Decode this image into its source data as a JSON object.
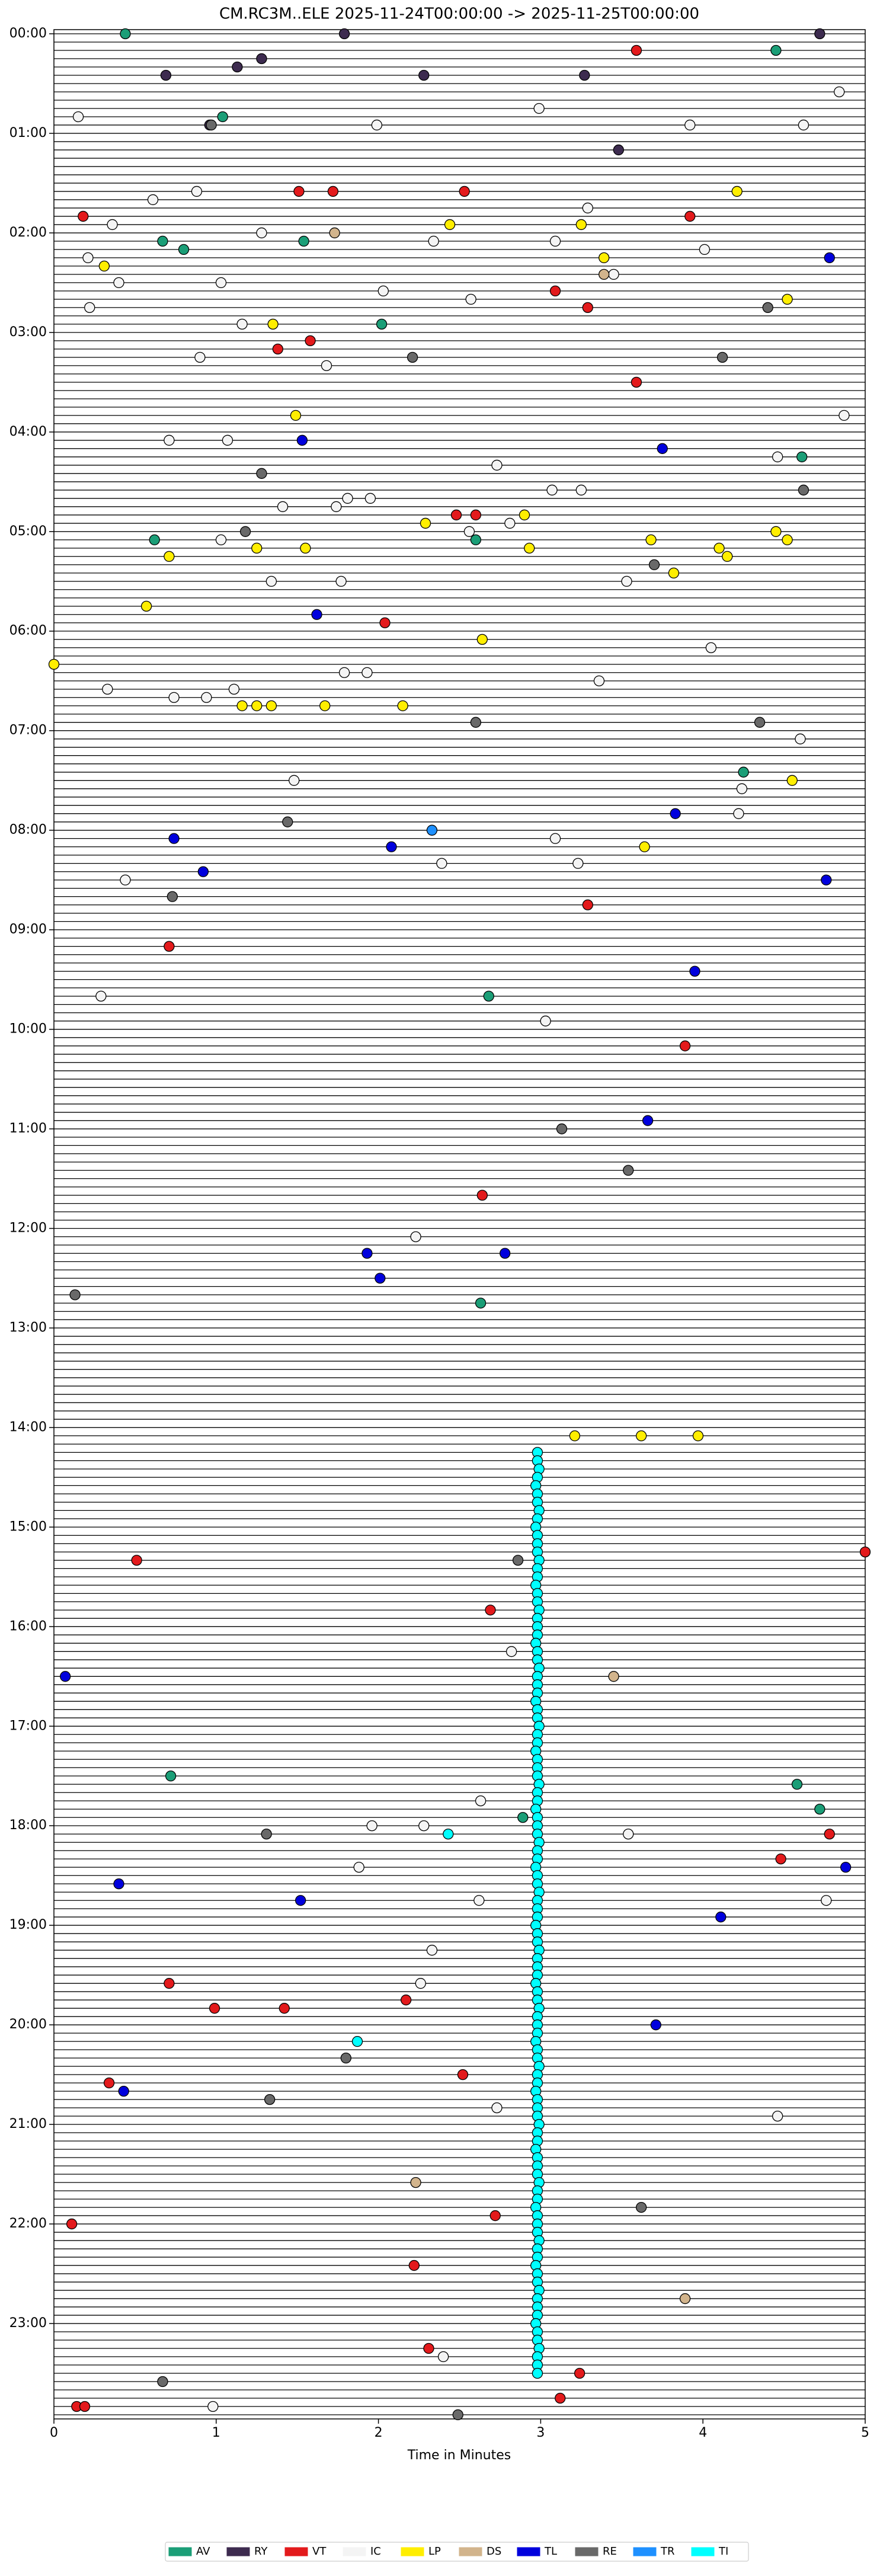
{
  "chart_data": {
    "type": "helicorder",
    "title": "CM.RC3M..ELE  2025-11-24T00:00:00 -> 2025-11-25T00:00:00",
    "x_label": "Time in Minutes",
    "xlim": [
      0,
      5
    ],
    "xticks": [
      0,
      1,
      2,
      3,
      4,
      5
    ],
    "ylim": [
      1440,
      0
    ],
    "yticks": [
      {
        "value": 0,
        "label": "00:00"
      },
      {
        "value": 60,
        "label": "01:00"
      },
      {
        "value": 120,
        "label": "02:00"
      },
      {
        "value": 180,
        "label": "03:00"
      },
      {
        "value": 240,
        "label": "04:00"
      },
      {
        "value": 300,
        "label": "05:00"
      },
      {
        "value": 360,
        "label": "06:00"
      },
      {
        "value": 420,
        "label": "07:00"
      },
      {
        "value": 480,
        "label": "08:00"
      },
      {
        "value": 540,
        "label": "09:00"
      },
      {
        "value": 600,
        "label": "10:00"
      },
      {
        "value": 660,
        "label": "11:00"
      },
      {
        "value": 720,
        "label": "12:00"
      },
      {
        "value": 780,
        "label": "13:00"
      },
      {
        "value": 840,
        "label": "14:00"
      },
      {
        "value": 900,
        "label": "15:00"
      },
      {
        "value": 960,
        "label": "16:00"
      },
      {
        "value": 1020,
        "label": "17:00"
      },
      {
        "value": 1080,
        "label": "18:00"
      },
      {
        "value": 1140,
        "label": "19:00"
      },
      {
        "value": 1200,
        "label": "20:00"
      },
      {
        "value": 1260,
        "label": "21:00"
      },
      {
        "value": 1320,
        "label": "22:00"
      },
      {
        "value": 1380,
        "label": "23:00"
      }
    ],
    "series": [
      {
        "name": "AV",
        "color": "#1b9e77",
        "x": [
          0.44,
          4.45,
          1.04,
          0.67,
          0.8,
          1.54,
          2.02,
          2.6,
          0.62,
          4.25,
          4.61,
          2.68,
          2.63,
          0.72,
          4.58,
          4.72,
          2.89
        ],
        "values": [
          0,
          10,
          50,
          125,
          130,
          125,
          175,
          305,
          305,
          445,
          255,
          580,
          765,
          1050,
          1055,
          1070,
          1075
        ]
      },
      {
        "name": "RY",
        "color": "#3d2b4f",
        "x": [
          1.79,
          4.72,
          1.28,
          1.13,
          2.28,
          0.69,
          3.27,
          0.96,
          3.48
        ],
        "values": [
          0,
          0,
          15,
          20,
          25,
          25,
          25,
          55,
          70
        ]
      },
      {
        "name": "VT",
        "color": "#e31a1c",
        "x": [
          3.59,
          0.18,
          1.51,
          1.72,
          2.53,
          3.92,
          1.58,
          1.38,
          3.59,
          3.09,
          3.29,
          2.48,
          2.6,
          2.04,
          3.29,
          0.71,
          3.89,
          2.64,
          0.51,
          2.69,
          4.48,
          4.78,
          0.71,
          0.99,
          1.42,
          2.17,
          2.52,
          0.34,
          2.72,
          0.11,
          2.22,
          2.31,
          3.24,
          3.12,
          0.14,
          0.19,
          5.0
        ],
        "values": [
          10,
          110,
          95,
          95,
          95,
          110,
          185,
          190,
          210,
          155,
          165,
          290,
          290,
          355,
          525,
          550,
          610,
          700,
          920,
          950,
          1100,
          1085,
          1175,
          1190,
          1190,
          1185,
          1230,
          1235,
          1315,
          1320,
          1345,
          1395,
          1410,
          1425,
          1430,
          1430,
          915
        ]
      },
      {
        "name": "IC",
        "color": "#f4f4f4",
        "x": [
          0.15,
          0.61,
          0.88,
          1.28,
          2.34,
          3.09,
          4.01,
          0.36,
          3.29,
          3.45,
          0.21,
          0.4,
          1.03,
          2.03,
          2.57,
          0.22,
          1.16,
          0.9,
          1.68,
          4.84,
          2.99,
          3.92,
          4.62,
          1.99,
          4.87,
          0.71,
          1.07,
          2.73,
          3.07,
          3.25,
          4.46,
          1.81,
          1.95,
          1.74,
          1.41,
          2.56,
          1.03,
          2.81,
          3.53,
          1.34,
          1.77,
          4.05,
          0.33,
          1.11,
          1.79,
          1.93,
          0.74,
          0.94,
          3.36,
          4.6,
          1.48,
          4.22,
          4.24,
          3.09,
          3.23,
          2.39,
          0.44,
          0.29,
          3.03,
          2.23,
          2.62,
          2.33,
          2.26,
          2.73,
          4.46,
          1.96,
          2.28,
          3.54,
          1.88,
          2.63,
          2.82,
          4.76,
          2.4,
          0.98
        ],
        "values": [
          50,
          100,
          95,
          120,
          125,
          125,
          130,
          115,
          105,
          145,
          135,
          150,
          150,
          155,
          160,
          165,
          175,
          195,
          200,
          35,
          45,
          55,
          55,
          55,
          230,
          245,
          245,
          260,
          275,
          275,
          255,
          280,
          280,
          285,
          285,
          300,
          305,
          295,
          330,
          330,
          330,
          370,
          395,
          395,
          385,
          385,
          400,
          400,
          390,
          425,
          450,
          470,
          455,
          485,
          500,
          500,
          510,
          580,
          595,
          725,
          1125,
          1155,
          1175,
          1250,
          1255,
          1080,
          1080,
          1085,
          1105,
          1065,
          975,
          1125,
          1400,
          1430
        ]
      },
      {
        "name": "LP",
        "color": "#ffee00",
        "x": [
          4.21,
          2.44,
          3.25,
          3.39,
          0.31,
          4.52,
          1.35,
          1.49,
          2.29,
          2.9,
          4.45,
          4.52,
          3.68,
          1.25,
          1.55,
          2.93,
          4.1,
          4.15,
          3.82,
          0.71,
          0.57,
          2.64,
          0.0,
          1.16,
          1.25,
          1.34,
          1.67,
          2.15,
          4.55,
          3.64,
          3.21,
          3.62,
          3.97
        ],
        "values": [
          95,
          115,
          115,
          135,
          140,
          160,
          175,
          230,
          295,
          290,
          300,
          305,
          305,
          310,
          310,
          310,
          310,
          315,
          325,
          315,
          345,
          365,
          380,
          405,
          405,
          405,
          405,
          405,
          450,
          490,
          845,
          845,
          845
        ]
      },
      {
        "name": "DS",
        "color": "#d2b48c",
        "x": [
          1.73,
          3.39,
          3.45,
          3.89,
          2.23
        ],
        "values": [
          120,
          145,
          990,
          1365,
          1295
        ]
      },
      {
        "name": "TL",
        "color": "#0000dd",
        "x": [
          4.78,
          1.53,
          3.75,
          1.62,
          3.83,
          0.74,
          2.08,
          0.92,
          4.76,
          3.95,
          3.66,
          1.93,
          2.78,
          2.01,
          0.07,
          0.4,
          1.52,
          4.11,
          3.71,
          0.43,
          4.88
        ],
        "values": [
          135,
          245,
          250,
          350,
          470,
          485,
          490,
          505,
          510,
          565,
          655,
          735,
          735,
          750,
          990,
          1115,
          1125,
          1135,
          1200,
          1240,
          1105
        ]
      },
      {
        "name": "RE",
        "color": "#696969",
        "x": [
          4.4,
          2.21,
          4.12,
          1.28,
          4.62,
          1.18,
          3.7,
          2.6,
          4.35,
          1.44,
          0.73,
          3.13,
          3.54,
          0.13,
          1.31,
          1.8,
          1.33,
          3.62,
          0.67,
          2.49,
          0.97,
          2.86
        ],
        "values": [
          165,
          195,
          195,
          265,
          275,
          300,
          320,
          415,
          415,
          475,
          520,
          660,
          685,
          760,
          1085,
          1220,
          1245,
          1310,
          1415,
          1435,
          55,
          920
        ]
      },
      {
        "name": "TR",
        "color": "#1e90ff",
        "x": [
          2.33
        ],
        "values": [
          480
        ]
      },
      {
        "name": "TI",
        "color": "#00ffff",
        "x": [
          2.43,
          1.87,
          2.98,
          2.98,
          2.99,
          2.98,
          2.97,
          2.98,
          2.98,
          2.99,
          2.98,
          2.97,
          2.98,
          2.98,
          2.98,
          2.99,
          2.98,
          2.98,
          2.97,
          2.98,
          2.98,
          2.99,
          2.98,
          2.98,
          2.98,
          2.97,
          2.98,
          2.98,
          2.99,
          2.98,
          2.98,
          2.98,
          2.97,
          2.98,
          2.98,
          2.99,
          2.98,
          2.98,
          2.97,
          2.98,
          2.98,
          2.98,
          2.99,
          2.98,
          2.98,
          2.97,
          2.98,
          2.98,
          2.98,
          2.99,
          2.98,
          2.98,
          2.97,
          2.98,
          2.98,
          2.99,
          2.98,
          2.98,
          2.98,
          2.97,
          2.98,
          2.98,
          2.99,
          2.98,
          2.98,
          2.98,
          2.97,
          2.98,
          2.98,
          2.99,
          2.98,
          2.98,
          2.98,
          2.97,
          2.98,
          2.98,
          2.99,
          2.98,
          2.98,
          2.97,
          2.98,
          2.98,
          2.98,
          2.99,
          2.98,
          2.98,
          2.97,
          2.98,
          2.98,
          2.98,
          2.99,
          2.98,
          2.98,
          2.97,
          2.98,
          2.98,
          2.98,
          2.99,
          2.98,
          2.98,
          2.97,
          2.98,
          2.98,
          2.99,
          2.98,
          2.98,
          2.98,
          2.97,
          2.98,
          2.98,
          2.99,
          2.98,
          2.98,
          2.98
        ],
        "values": [
          1085,
          1210,
          855,
          860,
          865,
          870,
          875,
          880,
          885,
          890,
          895,
          900,
          905,
          910,
          915,
          920,
          925,
          930,
          935,
          940,
          945,
          950,
          955,
          960,
          965,
          970,
          975,
          980,
          985,
          990,
          995,
          1000,
          1005,
          1010,
          1015,
          1020,
          1025,
          1030,
          1035,
          1040,
          1045,
          1050,
          1055,
          1060,
          1065,
          1070,
          1075,
          1080,
          1085,
          1090,
          1095,
          1100,
          1105,
          1110,
          1115,
          1120,
          1125,
          1130,
          1135,
          1140,
          1145,
          1150,
          1155,
          1160,
          1165,
          1170,
          1175,
          1180,
          1185,
          1190,
          1195,
          1200,
          1205,
          1210,
          1215,
          1220,
          1225,
          1230,
          1235,
          1240,
          1245,
          1250,
          1255,
          1260,
          1265,
          1270,
          1275,
          1280,
          1285,
          1290,
          1295,
          1300,
          1305,
          1310,
          1315,
          1320,
          1325,
          1330,
          1335,
          1340,
          1345,
          1350,
          1355,
          1360,
          1365,
          1370,
          1375,
          1380,
          1385,
          1390,
          1395,
          1400,
          1405,
          1410
        ]
      }
    ]
  }
}
